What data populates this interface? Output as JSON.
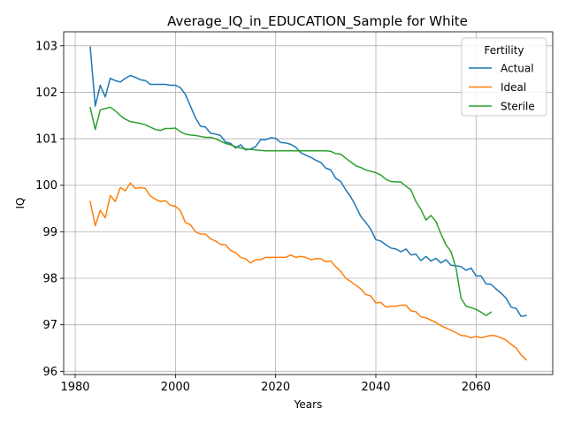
{
  "chart_data": {
    "type": "line",
    "title": "Average_IQ_in_EDUCATION_Sample for White",
    "xlabel": "Years",
    "ylabel": "IQ",
    "xlim": [
      1977.7,
      2075.3
    ],
    "ylim": [
      95.93,
      103.3
    ],
    "xticks": [
      1980,
      2000,
      2020,
      2040,
      2060
    ],
    "yticks": [
      96,
      97,
      98,
      99,
      100,
      101,
      102,
      103
    ],
    "grid": true,
    "legend": {
      "title": "Fertility",
      "placement": "top-right"
    },
    "series": [
      {
        "name": "Actual",
        "color": "#1f77b4",
        "points": [
          [
            1983,
            102.97
          ],
          [
            1984,
            101.7
          ],
          [
            1985,
            102.15
          ],
          [
            1986,
            101.9
          ],
          [
            1987,
            102.3
          ],
          [
            1988,
            102.25
          ],
          [
            1989,
            102.22
          ],
          [
            1990,
            102.3
          ],
          [
            1991,
            102.36
          ],
          [
            1992,
            102.32
          ],
          [
            1993,
            102.27
          ],
          [
            1994,
            102.25
          ],
          [
            1995,
            102.17
          ],
          [
            1996,
            102.17
          ],
          [
            1997,
            102.17
          ],
          [
            1998,
            102.17
          ],
          [
            1999,
            102.15
          ],
          [
            2000,
            102.15
          ],
          [
            2001,
            102.1
          ],
          [
            2002,
            101.95
          ],
          [
            2003,
            101.7
          ],
          [
            2004,
            101.45
          ],
          [
            2005,
            101.27
          ],
          [
            2006,
            101.25
          ],
          [
            2007,
            101.12
          ],
          [
            2008,
            101.1
          ],
          [
            2009,
            101.07
          ],
          [
            2010,
            100.93
          ],
          [
            2011,
            100.9
          ],
          [
            2012,
            100.8
          ],
          [
            2013,
            100.87
          ],
          [
            2014,
            100.76
          ],
          [
            2015,
            100.78
          ],
          [
            2016,
            100.83
          ],
          [
            2017,
            100.98
          ],
          [
            2018,
            100.98
          ],
          [
            2019,
            101.02
          ],
          [
            2020,
            101.01
          ],
          [
            2021,
            100.92
          ],
          [
            2022,
            100.91
          ],
          [
            2023,
            100.88
          ],
          [
            2024,
            100.82
          ],
          [
            2025,
            100.7
          ],
          [
            2026,
            100.65
          ],
          [
            2027,
            100.6
          ],
          [
            2028,
            100.54
          ],
          [
            2029,
            100.49
          ],
          [
            2030,
            100.37
          ],
          [
            2031,
            100.33
          ],
          [
            2032,
            100.15
          ],
          [
            2033,
            100.08
          ],
          [
            2034,
            99.9
          ],
          [
            2035,
            99.75
          ],
          [
            2036,
            99.55
          ],
          [
            2037,
            99.33
          ],
          [
            2038,
            99.2
          ],
          [
            2039,
            99.05
          ],
          [
            2040,
            98.83
          ],
          [
            2041,
            98.8
          ],
          [
            2042,
            98.72
          ],
          [
            2043,
            98.65
          ],
          [
            2044,
            98.63
          ],
          [
            2045,
            98.57
          ],
          [
            2046,
            98.63
          ],
          [
            2047,
            98.5
          ],
          [
            2048,
            98.52
          ],
          [
            2049,
            98.38
          ],
          [
            2050,
            98.47
          ],
          [
            2051,
            98.37
          ],
          [
            2052,
            98.43
          ],
          [
            2053,
            98.33
          ],
          [
            2054,
            98.4
          ],
          [
            2055,
            98.28
          ],
          [
            2056,
            98.27
          ],
          [
            2057,
            98.25
          ],
          [
            2058,
            98.17
          ],
          [
            2059,
            98.22
          ],
          [
            2060,
            98.05
          ],
          [
            2061,
            98.05
          ],
          [
            2062,
            97.88
          ],
          [
            2063,
            97.87
          ],
          [
            2064,
            97.77
          ],
          [
            2065,
            97.68
          ],
          [
            2066,
            97.57
          ],
          [
            2067,
            97.38
          ],
          [
            2068,
            97.35
          ],
          [
            2069,
            97.18
          ],
          [
            2070,
            97.2
          ]
        ]
      },
      {
        "name": "Ideal",
        "color": "#ff7f0e",
        "points": [
          [
            1983,
            99.65
          ],
          [
            1984,
            99.13
          ],
          [
            1985,
            99.46
          ],
          [
            1986,
            99.3
          ],
          [
            1987,
            99.78
          ],
          [
            1988,
            99.65
          ],
          [
            1989,
            99.95
          ],
          [
            1990,
            99.88
          ],
          [
            1991,
            100.05
          ],
          [
            1992,
            99.93
          ],
          [
            1993,
            99.95
          ],
          [
            1994,
            99.93
          ],
          [
            1995,
            99.77
          ],
          [
            1996,
            99.7
          ],
          [
            1997,
            99.65
          ],
          [
            1998,
            99.67
          ],
          [
            1999,
            99.57
          ],
          [
            2000,
            99.55
          ],
          [
            2001,
            99.45
          ],
          [
            2002,
            99.2
          ],
          [
            2003,
            99.15
          ],
          [
            2004,
            99.0
          ],
          [
            2005,
            98.95
          ],
          [
            2006,
            98.95
          ],
          [
            2007,
            98.85
          ],
          [
            2008,
            98.8
          ],
          [
            2009,
            98.73
          ],
          [
            2010,
            98.72
          ],
          [
            2011,
            98.6
          ],
          [
            2012,
            98.55
          ],
          [
            2013,
            98.45
          ],
          [
            2014,
            98.42
          ],
          [
            2015,
            98.33
          ],
          [
            2016,
            98.4
          ],
          [
            2017,
            98.4
          ],
          [
            2018,
            98.45
          ],
          [
            2019,
            98.45
          ],
          [
            2020,
            98.45
          ],
          [
            2021,
            98.45
          ],
          [
            2022,
            98.45
          ],
          [
            2023,
            98.5
          ],
          [
            2024,
            98.45
          ],
          [
            2025,
            98.47
          ],
          [
            2026,
            98.45
          ],
          [
            2027,
            98.4
          ],
          [
            2028,
            98.42
          ],
          [
            2029,
            98.42
          ],
          [
            2030,
            98.36
          ],
          [
            2031,
            98.37
          ],
          [
            2032,
            98.25
          ],
          [
            2033,
            98.15
          ],
          [
            2034,
            98.0
          ],
          [
            2035,
            97.93
          ],
          [
            2036,
            97.85
          ],
          [
            2037,
            97.77
          ],
          [
            2038,
            97.65
          ],
          [
            2039,
            97.62
          ],
          [
            2040,
            97.47
          ],
          [
            2041,
            97.48
          ],
          [
            2042,
            97.38
          ],
          [
            2043,
            97.4
          ],
          [
            2044,
            97.4
          ],
          [
            2045,
            97.42
          ],
          [
            2046,
            97.42
          ],
          [
            2047,
            97.3
          ],
          [
            2048,
            97.28
          ],
          [
            2049,
            97.17
          ],
          [
            2050,
            97.15
          ],
          [
            2051,
            97.1
          ],
          [
            2052,
            97.05
          ],
          [
            2053,
            96.98
          ],
          [
            2054,
            96.93
          ],
          [
            2055,
            96.88
          ],
          [
            2056,
            96.83
          ],
          [
            2057,
            96.77
          ],
          [
            2058,
            96.76
          ],
          [
            2059,
            96.72
          ],
          [
            2060,
            96.75
          ],
          [
            2061,
            96.72
          ],
          [
            2062,
            96.75
          ],
          [
            2063,
            96.77
          ],
          [
            2064,
            96.76
          ],
          [
            2065,
            96.72
          ],
          [
            2066,
            96.67
          ],
          [
            2067,
            96.58
          ],
          [
            2068,
            96.5
          ],
          [
            2069,
            96.35
          ],
          [
            2070,
            96.25
          ]
        ]
      },
      {
        "name": "Sterile",
        "color": "#2ca02c",
        "points": [
          [
            1983,
            101.67
          ],
          [
            1984,
            101.2
          ],
          [
            1985,
            101.62
          ],
          [
            1986,
            101.65
          ],
          [
            1987,
            101.68
          ],
          [
            1988,
            101.6
          ],
          [
            1989,
            101.5
          ],
          [
            1990,
            101.42
          ],
          [
            1991,
            101.37
          ],
          [
            1992,
            101.35
          ],
          [
            1993,
            101.33
          ],
          [
            1994,
            101.3
          ],
          [
            1995,
            101.25
          ],
          [
            1996,
            101.2
          ],
          [
            1997,
            101.18
          ],
          [
            1998,
            101.22
          ],
          [
            1999,
            101.22
          ],
          [
            2000,
            101.23
          ],
          [
            2001,
            101.15
          ],
          [
            2002,
            101.1
          ],
          [
            2003,
            101.08
          ],
          [
            2004,
            101.07
          ],
          [
            2005,
            101.05
          ],
          [
            2006,
            101.03
          ],
          [
            2007,
            101.03
          ],
          [
            2008,
            101.0
          ],
          [
            2009,
            100.95
          ],
          [
            2010,
            100.9
          ],
          [
            2011,
            100.87
          ],
          [
            2012,
            100.83
          ],
          [
            2013,
            100.8
          ],
          [
            2014,
            100.78
          ],
          [
            2015,
            100.77
          ],
          [
            2016,
            100.76
          ],
          [
            2017,
            100.75
          ],
          [
            2018,
            100.74
          ],
          [
            2019,
            100.74
          ],
          [
            2020,
            100.74
          ],
          [
            2021,
            100.74
          ],
          [
            2022,
            100.74
          ],
          [
            2023,
            100.74
          ],
          [
            2024,
            100.74
          ],
          [
            2025,
            100.74
          ],
          [
            2026,
            100.74
          ],
          [
            2027,
            100.74
          ],
          [
            2028,
            100.74
          ],
          [
            2029,
            100.74
          ],
          [
            2030,
            100.74
          ],
          [
            2031,
            100.73
          ],
          [
            2032,
            100.68
          ],
          [
            2033,
            100.67
          ],
          [
            2034,
            100.58
          ],
          [
            2035,
            100.5
          ],
          [
            2036,
            100.42
          ],
          [
            2037,
            100.38
          ],
          [
            2038,
            100.33
          ],
          [
            2039,
            100.3
          ],
          [
            2040,
            100.27
          ],
          [
            2041,
            100.22
          ],
          [
            2042,
            100.13
          ],
          [
            2043,
            100.08
          ],
          [
            2044,
            100.07
          ],
          [
            2045,
            100.07
          ],
          [
            2046,
            99.98
          ],
          [
            2047,
            99.9
          ],
          [
            2048,
            99.65
          ],
          [
            2049,
            99.48
          ],
          [
            2050,
            99.25
          ],
          [
            2051,
            99.35
          ],
          [
            2052,
            99.22
          ],
          [
            2053,
            98.95
          ],
          [
            2054,
            98.72
          ],
          [
            2055,
            98.57
          ],
          [
            2056,
            98.22
          ],
          [
            2057,
            97.57
          ],
          [
            2058,
            97.4
          ],
          [
            2059,
            97.37
          ],
          [
            2060,
            97.33
          ],
          [
            2061,
            97.27
          ],
          [
            2062,
            97.2
          ],
          [
            2063,
            97.27
          ]
        ]
      }
    ]
  }
}
